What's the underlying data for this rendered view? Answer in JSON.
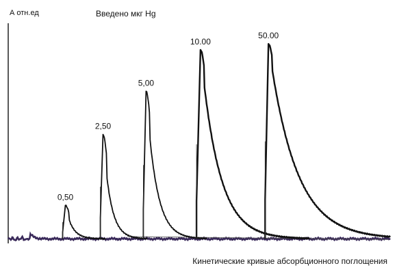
{
  "chart_data": {
    "type": "line",
    "title": "Введено мкг Hg",
    "xlabel": "Кинетические кривые абсорбционного поглощения",
    "ylabel": "А отн.ед",
    "grid": false,
    "legend": "none",
    "xlim": [
      0,
      570
    ],
    "ylim": [
      0,
      100
    ],
    "baseline": 3,
    "line_color": "#111111",
    "trace_tint": "#3a2a5a",
    "peaks": [
      {
        "label": "0,50",
        "start": 83,
        "peak_x": 87,
        "height": 17,
        "decay": 10
      },
      {
        "label": "2,50",
        "start": 139,
        "peak_x": 143,
        "height": 53,
        "decay": 11
      },
      {
        "label": "5,00",
        "start": 203,
        "peak_x": 207,
        "height": 75,
        "decay": 15
      },
      {
        "label": "10.00",
        "start": 282,
        "peak_x": 288,
        "height": 96,
        "decay": 27
      },
      {
        "label": "50.00",
        "start": 384,
        "peak_x": 389,
        "height": 99,
        "decay": 40
      }
    ]
  }
}
